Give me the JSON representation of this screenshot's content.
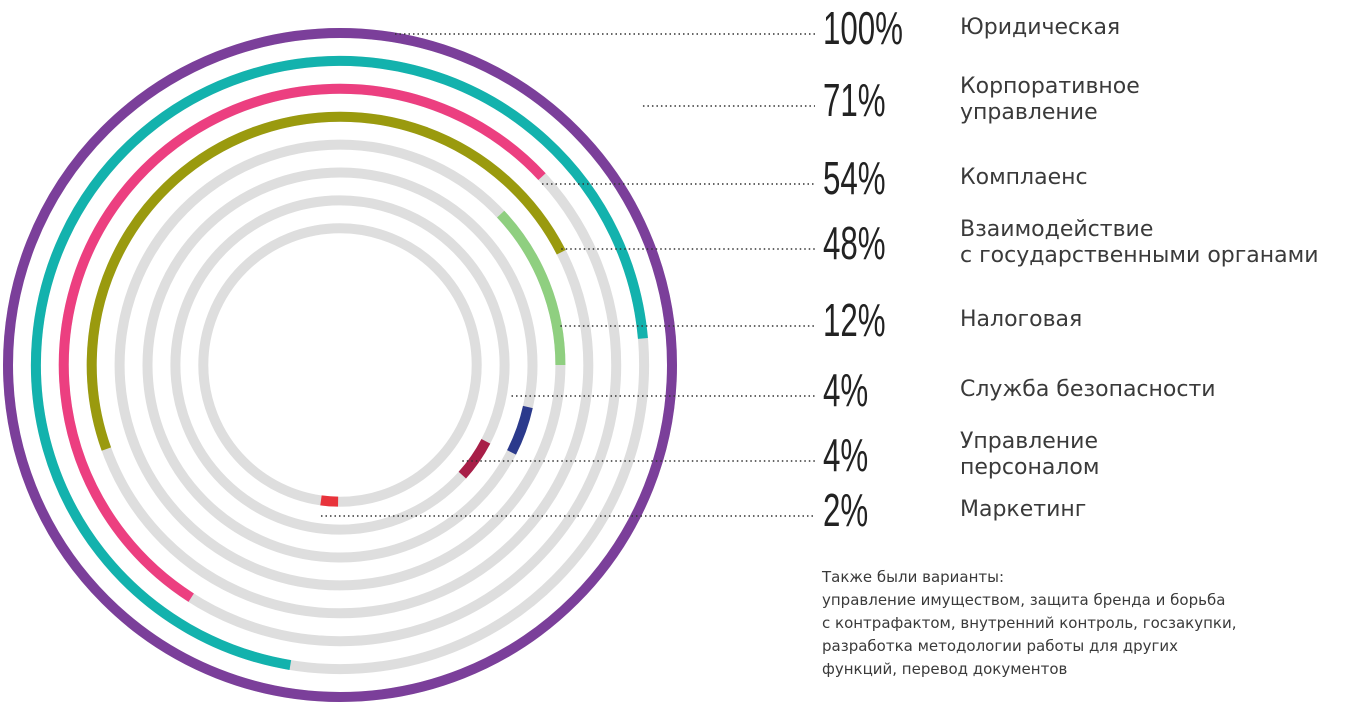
{
  "chart_data": {
    "type": "radial_bar",
    "categories": [
      "Юридическая",
      "Корпоративное\nуправление",
      "Комплаенс",
      "Взаимодействие\nс государственными органами",
      "Налоговая",
      "Служба безопасности",
      "Управление\nперсоналом",
      "Маркетинг"
    ],
    "values": [
      100,
      71,
      54,
      48,
      12,
      4,
      4,
      2
    ],
    "value_labels": [
      "100%",
      "71%",
      "54%",
      "48%",
      "12%",
      "4%",
      "4%",
      "2%"
    ],
    "colors": [
      "#7b3f9a",
      "#13b2ad",
      "#ec3f80",
      "#9a9a0e",
      "#8fcf80",
      "#2b3a8c",
      "#a81f48",
      "#e8333b"
    ],
    "track_color": "#dedede",
    "note_title": "Также были варианты:",
    "note": "управление имуществом, защита бренда и борьба\nс контрафактом, внутренний контроль, госзакупки,\nразработка методологии работы для других\nфункций, перевод документов"
  }
}
